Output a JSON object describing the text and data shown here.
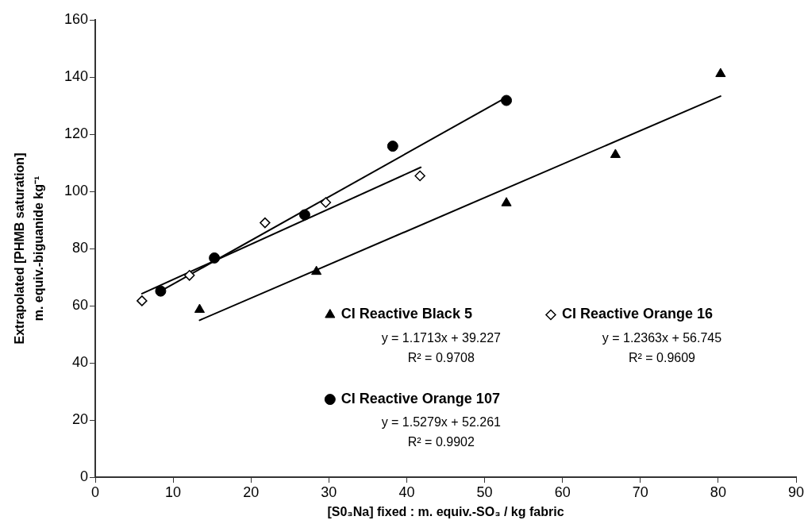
{
  "chart_data": {
    "type": "scatter",
    "xlabel": "[S0₃Na] fixed : m. equiv.-SO₃ / kg fabric",
    "ylabel": "Extrapolated [PHMB saturation]\nm. equiv.-biguanide kg⁻¹",
    "xlim": [
      0,
      90
    ],
    "xticks": [
      0,
      10,
      20,
      30,
      40,
      50,
      60,
      70,
      80,
      90
    ],
    "ylim": [
      0,
      160
    ],
    "yticks": [
      0,
      20,
      40,
      60,
      80,
      100,
      120,
      140,
      160
    ],
    "grid": false,
    "legend": "bottom",
    "series": [
      {
        "name": "CI Reactive Black 5",
        "type": "scatter",
        "marker": "triangle",
        "color": "#000000",
        "x": [
          13.4,
          28.4,
          52.8,
          66.8,
          80.3
        ],
        "values": [
          58.6,
          71.9,
          95.9,
          112.8,
          141.1
        ]
      },
      {
        "name": "CI Reactive Orange 16",
        "type": "scatter",
        "marker": "diamond",
        "color": "#000000",
        "x": [
          6.0,
          12.1,
          21.8,
          29.6,
          41.7
        ],
        "values": [
          61.7,
          70.6,
          89.0,
          96.1,
          105.4
        ]
      },
      {
        "name": "CI Reactive Orange 107",
        "type": "scatter",
        "marker": "circle",
        "color": "#000000",
        "x": [
          8.4,
          15.3,
          26.9,
          38.2,
          52.8
        ],
        "values": [
          65.1,
          76.7,
          91.8,
          115.8,
          131.8
        ]
      },
      {
        "type": "line",
        "marker": "none",
        "color": "#000000",
        "x": [
          13.4,
          80.3
        ],
        "values": [
          54.9,
          133.3
        ]
      },
      {
        "type": "line",
        "marker": "none",
        "color": "#000000",
        "x": [
          6.0,
          41.8
        ],
        "values": [
          64.2,
          108.4
        ]
      },
      {
        "type": "line",
        "marker": "none",
        "color": "#000000",
        "x": [
          8.4,
          52.8
        ],
        "values": [
          65.1,
          132.9
        ]
      }
    ],
    "annotations": [
      "y = 1.1713x + 39.227",
      "R² = 0.9708",
      "y = 1.2363x + 56.745",
      "R² = 0.9609",
      "y = 1.5279x + 52.261",
      "R² = 0.9902"
    ]
  }
}
